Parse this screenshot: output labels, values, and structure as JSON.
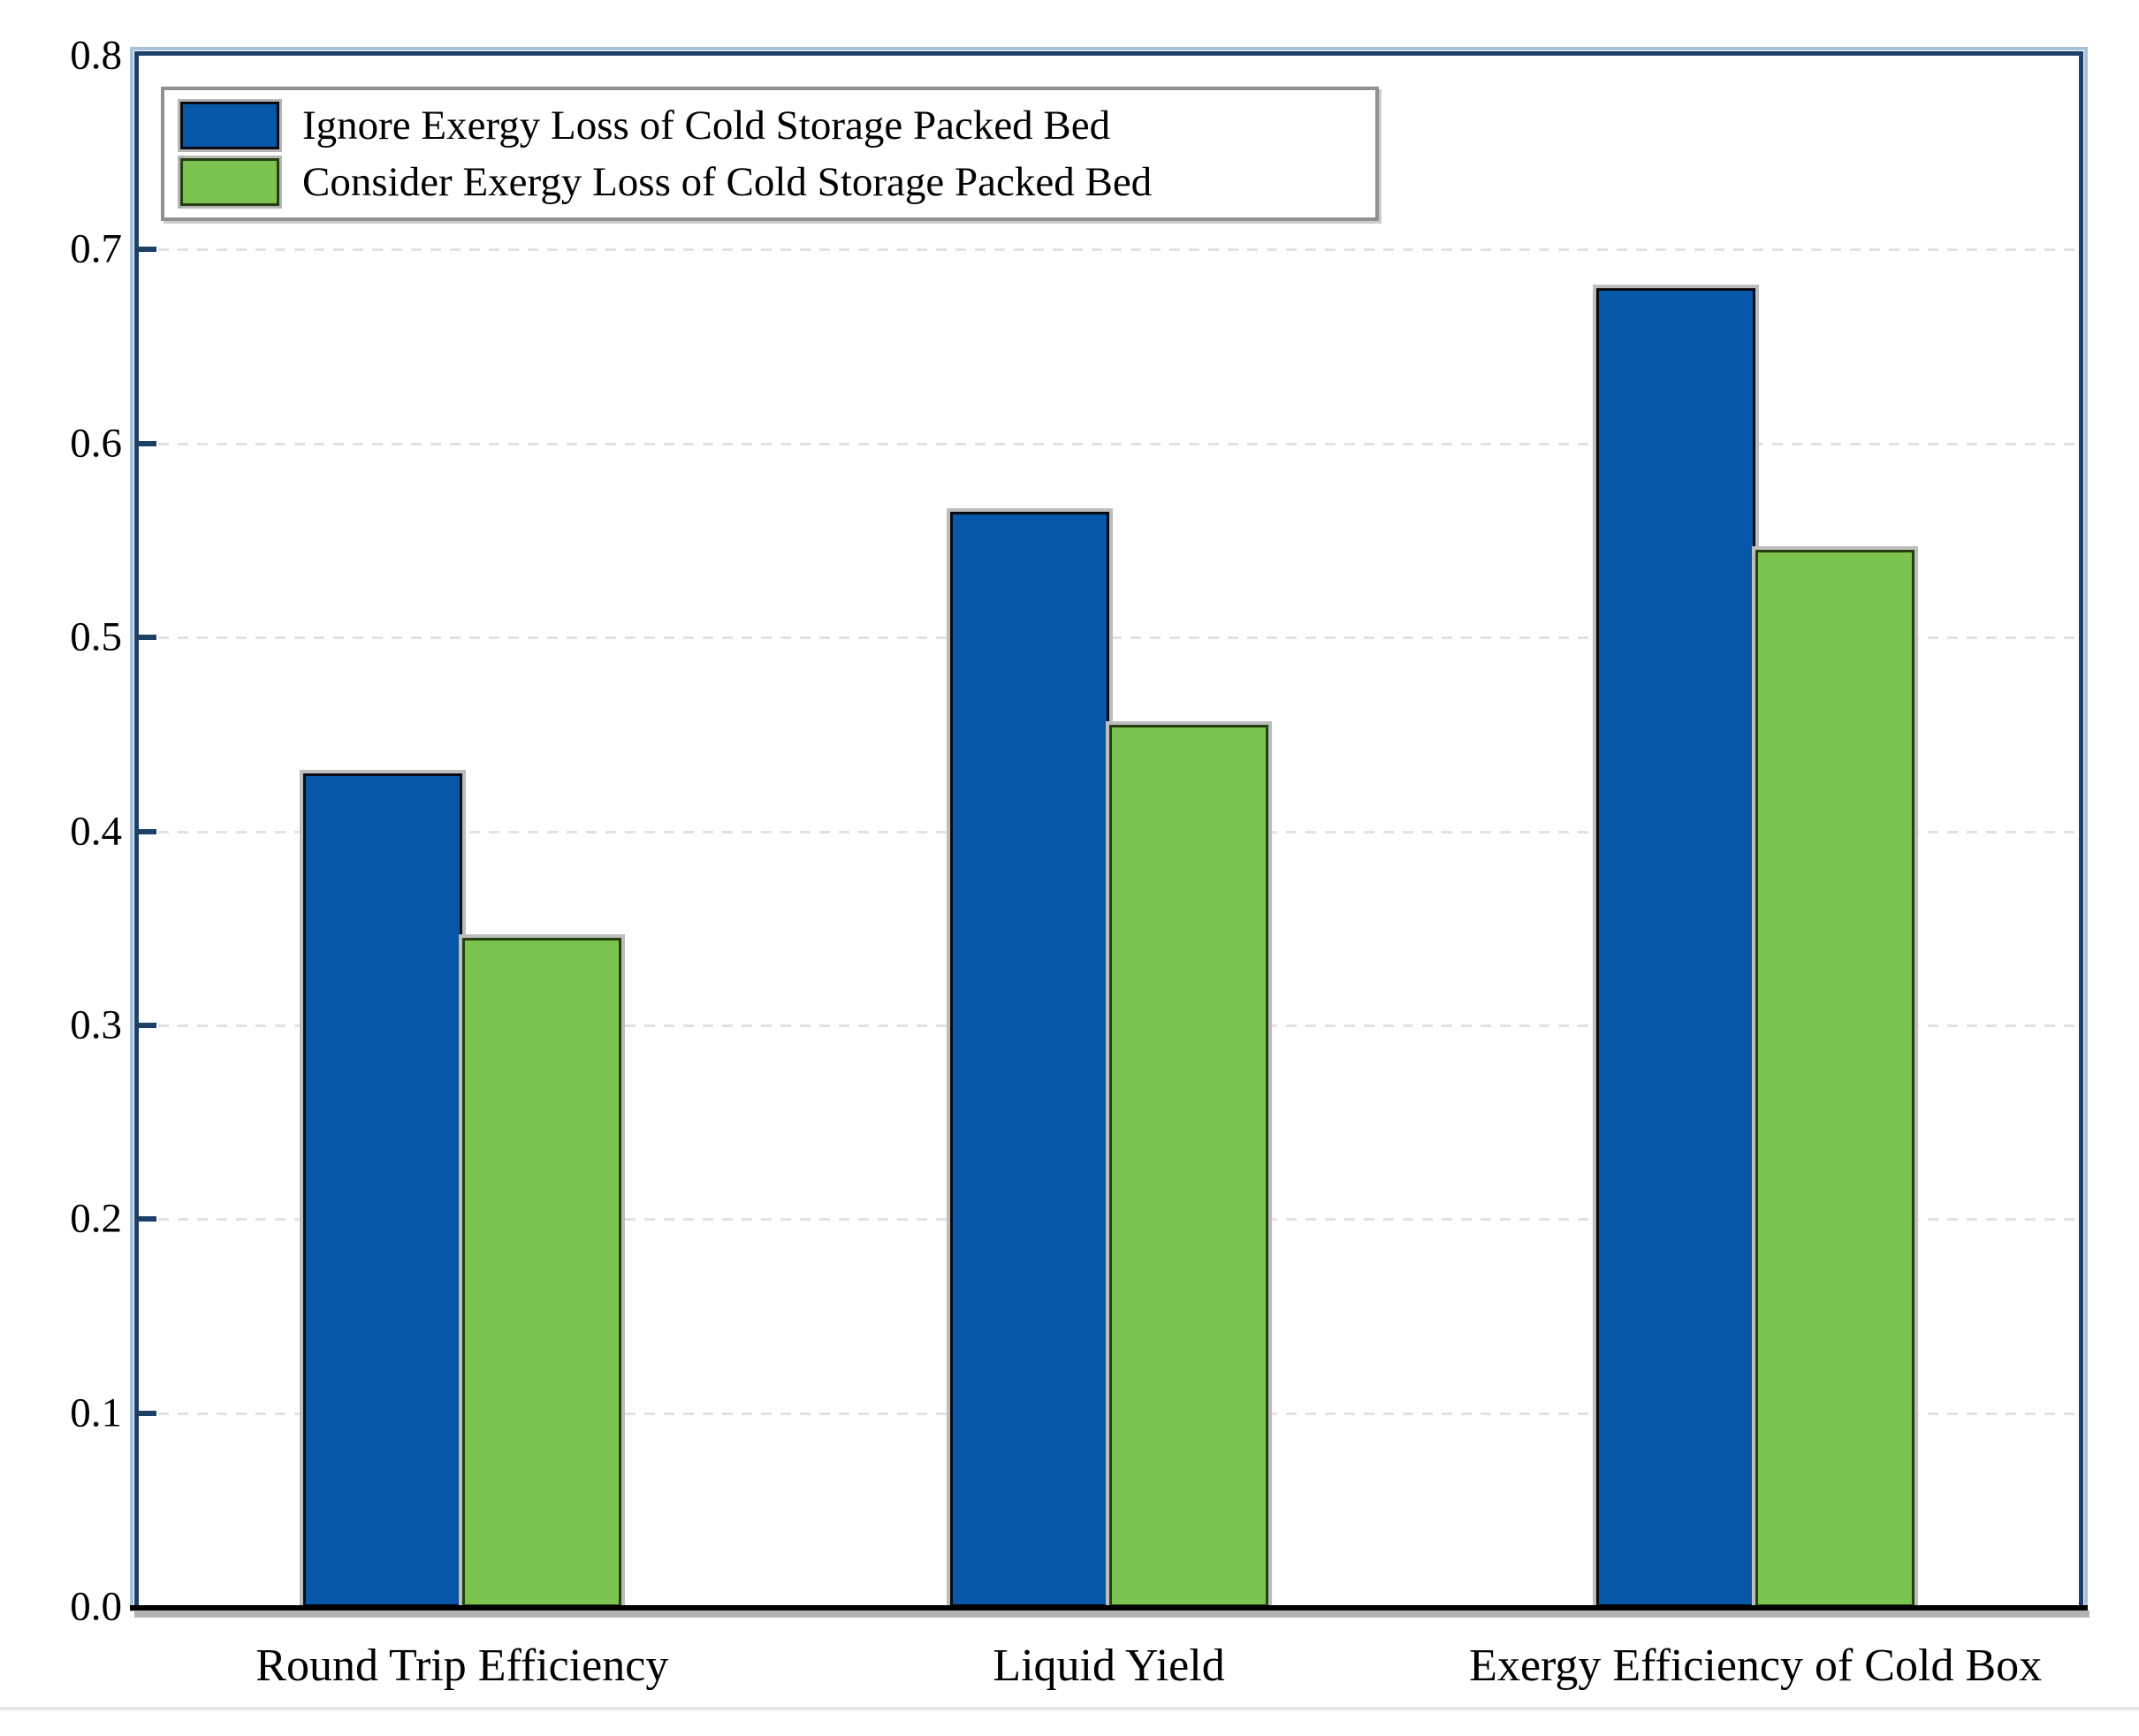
{
  "chart_data": {
    "type": "bar",
    "title": "",
    "xlabel": "",
    "ylabel": "",
    "categories": [
      "Round Trip Efficiency",
      "Liquid Yield",
      "Exergy Efficiency of Cold Box"
    ],
    "series": [
      {
        "name": "Ignore Exergy Loss of Cold Storage Packed Bed",
        "values": [
          0.43,
          0.565,
          0.68
        ],
        "fill": "#0657a8",
        "edge": "#0a0a12"
      },
      {
        "name": "Consider Exergy Loss of Cold Storage Packed Bed",
        "values": [
          0.345,
          0.455,
          0.545
        ],
        "fill": "#7cc24e",
        "edge": "#25400f"
      }
    ],
    "ylim": [
      0,
      0.8
    ],
    "yticks": [
      0.0,
      0.1,
      0.2,
      0.3,
      0.4,
      0.5,
      0.6,
      0.7,
      0.8
    ],
    "ytick_labels": [
      "0.0",
      "0.1",
      "0.2",
      "0.3",
      "0.4",
      "0.5",
      "0.6",
      "0.7",
      "0.8"
    ],
    "grid": "horizontal-dashed",
    "legend_position": "top-left"
  },
  "colors": {
    "frame": "#1d4068",
    "frame_outer": "#aabfd8",
    "gridline": "#e2e2e2",
    "axis": "#000000",
    "axis_shadow": "#b4b4b4",
    "bar_outline": "#bdbdbd",
    "legend_border": "#909090",
    "text": "#000000",
    "background": "#ffffff"
  }
}
